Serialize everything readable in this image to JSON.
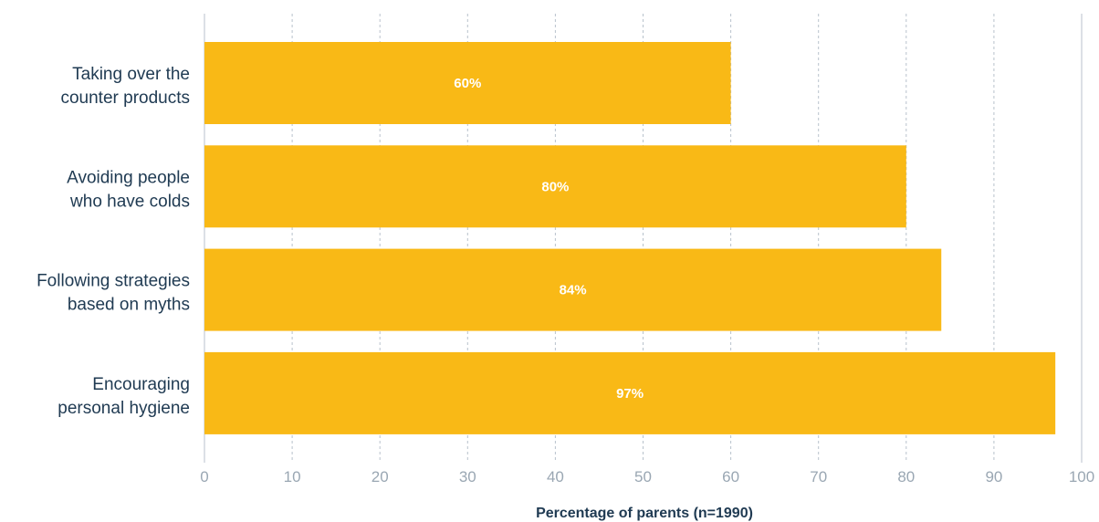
{
  "chart_data": {
    "type": "bar",
    "orientation": "horizontal",
    "categories": [
      [
        "Taking over the",
        "counter products"
      ],
      [
        "Avoiding people",
        "who have colds"
      ],
      [
        "Following strategies",
        "based on myths"
      ],
      [
        "Encouraging",
        "personal hygiene"
      ]
    ],
    "values": [
      60,
      80,
      84,
      97
    ],
    "data_labels": [
      "60%",
      "80%",
      "84%",
      "97%"
    ],
    "title": "",
    "xlabel": "Percentage of parents (n=1990)",
    "ylabel": "",
    "xlim": [
      0,
      100
    ],
    "xticks": [
      0,
      10,
      20,
      30,
      40,
      50,
      60,
      70,
      80,
      90,
      100
    ],
    "grid": "vertical dashed",
    "legend": "none",
    "colors": {
      "bar": "#f9b916",
      "grid": "#b8c2cc",
      "axis": "#b8c2cc",
      "category_text": "#1f3a52",
      "tick_text": "#9aa7b3",
      "data_label_text": "#ffffff"
    }
  }
}
